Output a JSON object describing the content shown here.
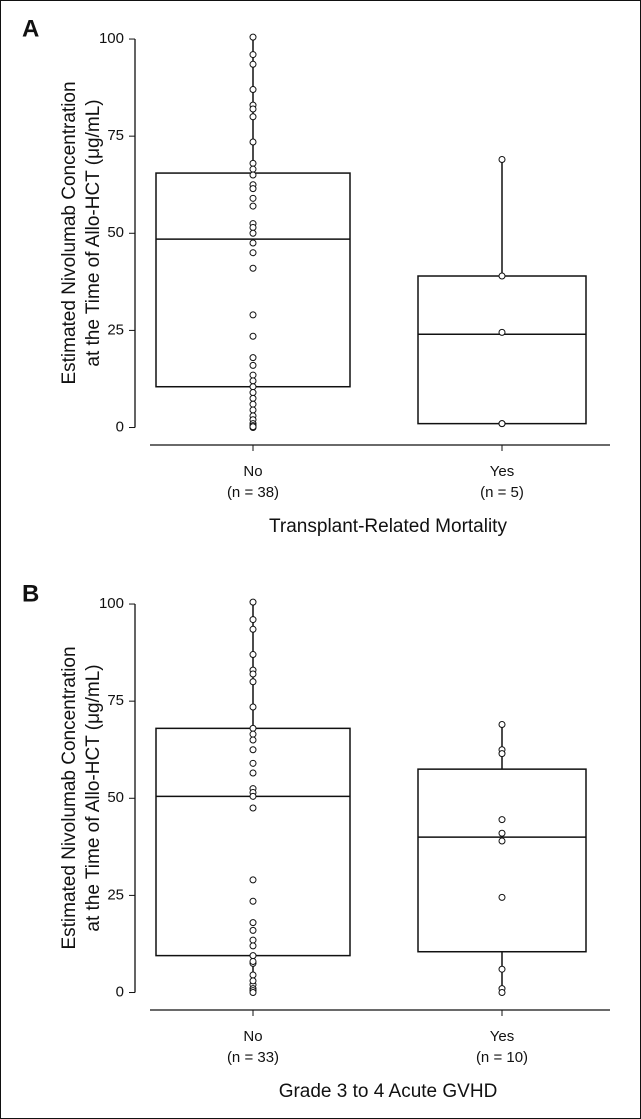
{
  "chart_data": [
    {
      "type": "box",
      "panel": "A",
      "y_label": [
        "Estimated Nivolumab Concentration",
        "at the Time of Allo-HCT (μg/mL)"
      ],
      "x_label": "Transplant-Related Mortality",
      "categories": [
        "No",
        "Yes"
      ],
      "n_labels": [
        "(n = 38)",
        "(n = 5)"
      ],
      "boxes": [
        {
          "min": 0,
          "q1": 10.5,
          "median": 48.5,
          "q3": 65.5,
          "max": 100.5
        },
        {
          "min": 1,
          "q1": 1,
          "median": 24,
          "q3": 39,
          "max": 69
        }
      ],
      "points": [
        [
          100.5,
          96,
          93.5,
          87,
          83,
          82,
          80,
          73.5,
          68,
          66.5,
          65,
          62.5,
          61.5,
          59,
          57,
          52.5,
          51.5,
          50,
          47.5,
          45,
          41,
          29,
          23.5,
          18,
          16,
          13.5,
          12,
          10.5,
          9,
          7.5,
          6,
          4.5,
          3,
          2,
          1,
          0.5,
          0,
          0.2
        ],
        [
          69,
          39,
          24.5,
          1,
          1
        ]
      ],
      "ylim": [
        -4.5,
        104
      ],
      "yticks": [
        0,
        25,
        50,
        75,
        100
      ]
    },
    {
      "type": "box",
      "panel": "B",
      "y_label": [
        "Estimated Nivolumab Concentration",
        "at the Time of Allo-HCT (μg/mL)"
      ],
      "x_label": "Grade 3 to 4 Acute GVHD",
      "categories": [
        "No",
        "Yes"
      ],
      "n_labels": [
        "(n = 33)",
        "(n = 10)"
      ],
      "boxes": [
        {
          "min": 0,
          "q1": 9.5,
          "median": 50.5,
          "q3": 68,
          "max": 100.5
        },
        {
          "min": 0,
          "q1": 10.5,
          "median": 40,
          "q3": 57.5,
          "max": 69
        }
      ],
      "points": [
        [
          100.5,
          96,
          93.5,
          87,
          83,
          82,
          80,
          73.5,
          68,
          66.5,
          65,
          62.5,
          59,
          56.5,
          52.5,
          51.5,
          50.5,
          47.5,
          29,
          23.5,
          18,
          16,
          13.5,
          12,
          9.5,
          7.5,
          4.5,
          2,
          1,
          0.5,
          0,
          3,
          8
        ],
        [
          69,
          62.5,
          61.5,
          44.5,
          41,
          39,
          24.5,
          6,
          1,
          0
        ]
      ],
      "ylim": [
        -4.5,
        104
      ],
      "yticks": [
        0,
        25,
        50,
        75,
        100
      ]
    }
  ]
}
